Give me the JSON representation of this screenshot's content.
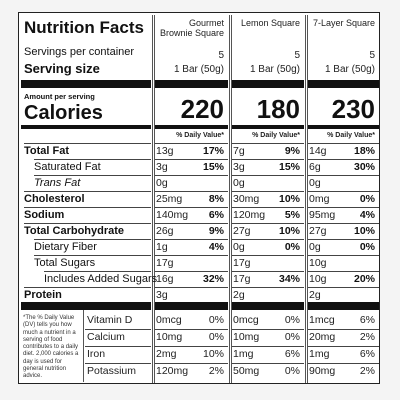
{
  "title": "Nutrition Facts",
  "servings_label": "Servings per container",
  "serving_size_label": "Serving size",
  "amount_label": "Amount per serving",
  "calories_label": "Calories",
  "nutrients": [
    "Total Fat",
    "Saturated Fat",
    "Trans Fat",
    "Cholesterol",
    "Sodium",
    "Total Carbohydrate",
    "Dietary Fiber",
    "Total Sugars",
    "Includes Added Sugars",
    "Protein"
  ],
  "vitamins": [
    "Vitamin D",
    "Calcium",
    "Iron",
    "Potassium"
  ],
  "footnote": "*The % Daily Value (DV) tells you how much a nutrient in a serving of food contributes to a daily diet. 2,000 calories a day is used for general nutrition advice.",
  "products": [
    {
      "name": "Gourmet Brownie Square",
      "servings": "5",
      "serving_size": "1 Bar (50g)",
      "calories": "220",
      "dv_header": "% Daily Value*",
      "nutrients": [
        [
          "13g",
          "17%"
        ],
        [
          "3g",
          "15%"
        ],
        [
          "0g"
        ],
        [
          "25mg",
          "8%"
        ],
        [
          "140mg",
          "6%"
        ],
        [
          "26g",
          "9%"
        ],
        [
          "1g",
          "4%"
        ],
        [
          "17g"
        ],
        [
          "16g",
          "32%"
        ],
        [
          "3g"
        ]
      ],
      "vitamins": [
        [
          "0mcg",
          "0%"
        ],
        [
          "10mg",
          "0%"
        ],
        [
          "2mg",
          "10%"
        ],
        [
          "120mg",
          "2%"
        ]
      ]
    },
    {
      "name": "Lemon Square",
      "servings": "5",
      "serving_size": "1 Bar (50g)",
      "calories": "180",
      "dv_header": "% Daily Value*",
      "nutrients": [
        [
          "7g",
          "9%"
        ],
        [
          "3g",
          "15%"
        ],
        [
          "0g"
        ],
        [
          "30mg",
          "10%"
        ],
        [
          "120mg",
          "5%"
        ],
        [
          "27g",
          "10%"
        ],
        [
          "0g",
          "0%"
        ],
        [
          "17g"
        ],
        [
          "17g",
          "34%"
        ],
        [
          "2g"
        ]
      ],
      "vitamins": [
        [
          "0mcg",
          "0%"
        ],
        [
          "10mg",
          "0%"
        ],
        [
          "1mg",
          "6%"
        ],
        [
          "50mg",
          "0%"
        ]
      ]
    },
    {
      "name": "7-Layer Square",
      "servings": "5",
      "serving_size": "1 Bar (50g)",
      "calories": "230",
      "dv_header": "% Daily Value*",
      "nutrients": [
        [
          "14g",
          "18%"
        ],
        [
          "6g",
          "30%"
        ],
        [
          "0g"
        ],
        [
          "0mg",
          "0%"
        ],
        [
          "95mg",
          "4%"
        ],
        [
          "27g",
          "10%"
        ],
        [
          "0g",
          "0%"
        ],
        [
          "10g"
        ],
        [
          "10g",
          "20%"
        ],
        [
          "2g"
        ]
      ],
      "vitamins": [
        [
          "1mcg",
          "6%"
        ],
        [
          "20mg",
          "2%"
        ],
        [
          "1mg",
          "6%"
        ],
        [
          "90mg",
          "2%"
        ]
      ]
    }
  ]
}
